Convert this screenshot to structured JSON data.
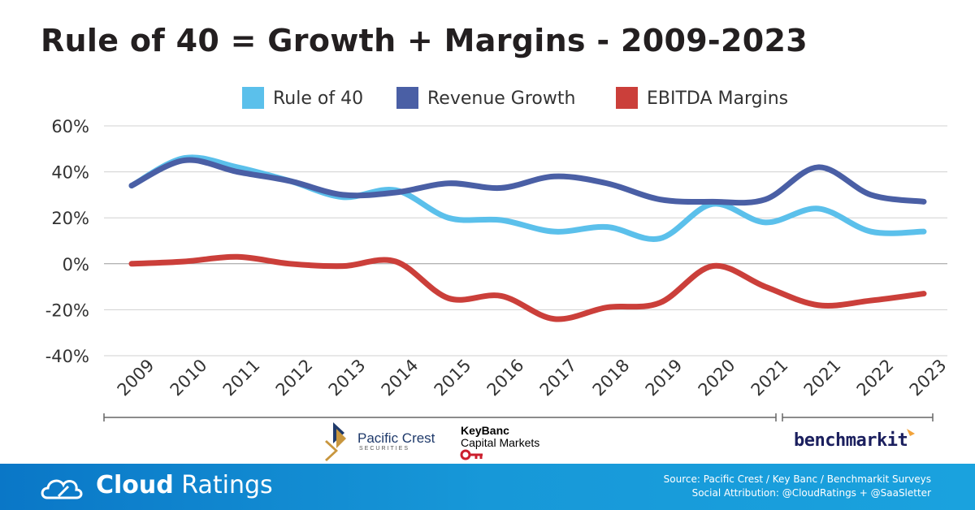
{
  "title": "Rule of 40 = Growth + Margins - 2009-2023",
  "chart_data": {
    "type": "line",
    "categories": [
      "2009",
      "2010",
      "2011",
      "2012",
      "2013",
      "2014",
      "2015",
      "2016",
      "2017",
      "2018",
      "2019",
      "2020",
      "2021",
      "2021",
      "2022",
      "2023"
    ],
    "series": [
      {
        "name": "Rule of 40",
        "color": "#5bc0eb",
        "values": [
          34,
          46,
          42,
          36,
          29,
          32,
          20,
          19,
          14,
          16,
          11,
          26,
          18,
          24,
          14,
          14
        ]
      },
      {
        "name": "Revenue Growth",
        "color": "#4a5fa5",
        "values": [
          34,
          45,
          40,
          36,
          30,
          31,
          35,
          33,
          38,
          35,
          28,
          27,
          28,
          42,
          30,
          27
        ]
      },
      {
        "name": "EBITDA Margins",
        "color": "#cb3f3a",
        "values": [
          0,
          1,
          3,
          0,
          -1,
          1,
          -15,
          -14,
          -24,
          -19,
          -17,
          -1,
          -10,
          -18,
          -16,
          -13
        ]
      }
    ],
    "y_ticks": [
      "60%",
      "40%",
      "20%",
      "0%",
      "-20%",
      "-40%"
    ],
    "ylim": [
      -40,
      60
    ],
    "grid": true,
    "legend_position": "top"
  },
  "logos": {
    "pacific_crest_name": "Pacific Crest",
    "pacific_crest_sub": "SECURITIES",
    "keybanc_name": "KeyBanc",
    "keybanc_sub": "Capital Markets",
    "benchmarkit_name": "benchmarkit"
  },
  "footer": {
    "brand_bold": "Cloud",
    "brand_light": "Ratings",
    "source": "Source: Pacific Crest / Key Banc / Benchmarkit Surveys",
    "attribution": "Social Attribution: @CloudRatings + @SaaSletter"
  }
}
